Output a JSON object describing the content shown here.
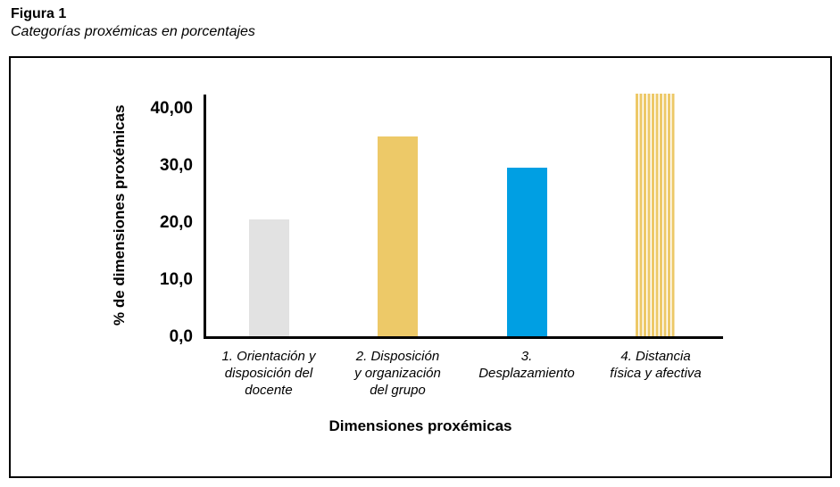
{
  "figure": {
    "label": "Figura 1",
    "caption": "Categorías proxémicas en porcentajes"
  },
  "chart_data": {
    "type": "bar",
    "title": "Categorías proxémicas en porcentajes",
    "xlabel": "Dimensiones proxémicas",
    "ylabel": "% de dimensiones proxémicas",
    "ylim": [
      0,
      45
    ],
    "grid": false,
    "legend": false,
    "y_ticks": [
      {
        "label": "0,0",
        "value": 0
      },
      {
        "label": "10,0",
        "value": 10
      },
      {
        "label": "20,0",
        "value": 20
      },
      {
        "label": "30,0",
        "value": 30
      },
      {
        "label": "40,00",
        "value": 40
      }
    ],
    "categories": [
      "1. Orientación y\ndisposición del\ndocente",
      "2. Disposición\ny organización\ndel grupo",
      "3.\nDesplazamiento",
      "4. Distancia\nfísica y afectiva"
    ],
    "values": [
      20.5,
      35.0,
      29.5,
      42.5
    ],
    "bars": [
      {
        "category": "1. Orientación y disposición del docente",
        "value": 20.5,
        "color": "#e2e2e2",
        "pattern": "solid"
      },
      {
        "category": "2. Disposición y organización del grupo",
        "value": 35.0,
        "color": "#edc968",
        "pattern": "solid"
      },
      {
        "category": "3. Desplazamiento",
        "value": 29.5,
        "color": "#009fe3",
        "pattern": "solid"
      },
      {
        "category": "4. Distancia física y afectiva",
        "value": 42.5,
        "color": "#edc968",
        "pattern": "vertical-stripes"
      }
    ],
    "colors": {
      "axis": "#000000",
      "gray_bar": "#e2e2e2",
      "gold_bar": "#edc968",
      "blue_bar": "#009fe3",
      "stripe_gap": "#ffffff"
    }
  }
}
